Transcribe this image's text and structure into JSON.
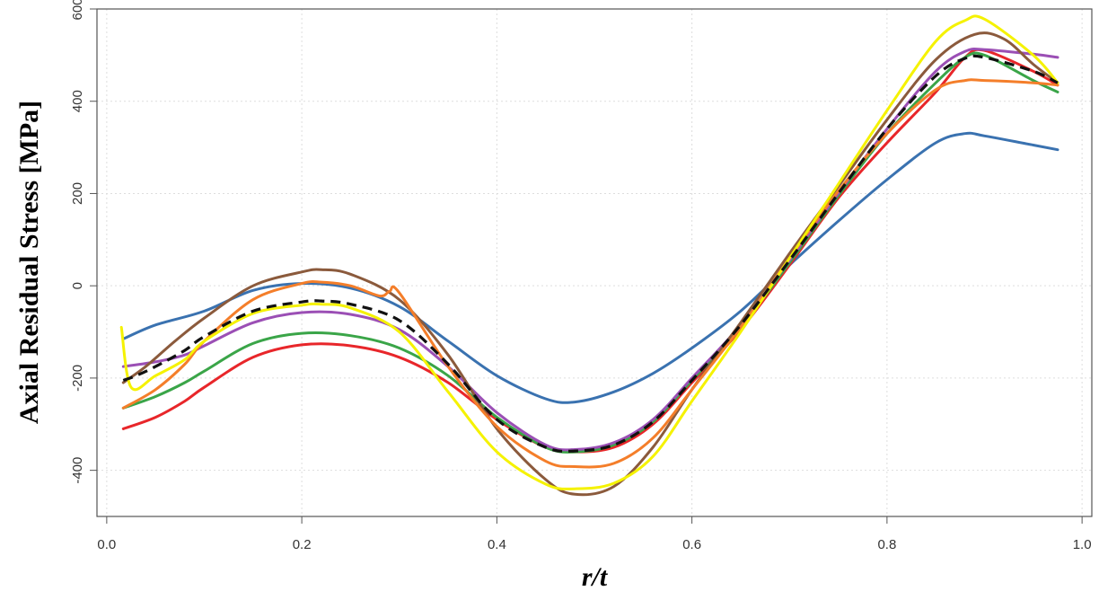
{
  "chart_data": {
    "type": "line",
    "title": "",
    "xlabel": "r/t",
    "ylabel": "Axial Residual Stress [MPa]",
    "xlim": [
      -0.01,
      1.01
    ],
    "ylim": [
      -500,
      600
    ],
    "xticks": [
      0.0,
      0.2,
      0.4,
      0.6,
      0.8,
      1.0
    ],
    "xtick_labels": [
      "0.0",
      "0.2",
      "0.4",
      "0.6",
      "0.8",
      "1.0"
    ],
    "yticks": [
      -400,
      -200,
      0,
      200,
      400,
      600
    ],
    "ytick_labels": [
      "-400",
      "-200",
      "0",
      "200",
      "400",
      "600"
    ],
    "grid": true,
    "legend": "none",
    "series": [
      {
        "color": "#3a72b0",
        "dash": false,
        "x": [
          0.017,
          0.05,
          0.1,
          0.15,
          0.2,
          0.25,
          0.3,
          0.35,
          0.4,
          0.45,
          0.48,
          0.52,
          0.56,
          0.6,
          0.65,
          0.7,
          0.75,
          0.8,
          0.85,
          0.88,
          0.9,
          0.95,
          0.975
        ],
        "y": [
          -115,
          -85,
          -55,
          -10,
          5,
          -5,
          -45,
          -120,
          -195,
          -245,
          -252,
          -230,
          -190,
          -135,
          -55,
          45,
          140,
          230,
          310,
          330,
          325,
          305,
          295
        ]
      },
      {
        "color": "#e8262a",
        "dash": false,
        "x": [
          0.017,
          0.05,
          0.08,
          0.1,
          0.15,
          0.2,
          0.25,
          0.3,
          0.35,
          0.4,
          0.45,
          0.48,
          0.52,
          0.56,
          0.6,
          0.65,
          0.7,
          0.75,
          0.8,
          0.85,
          0.88,
          0.9,
          0.95,
          0.975
        ],
        "y": [
          -310,
          -285,
          -250,
          -220,
          -155,
          -128,
          -130,
          -155,
          -210,
          -290,
          -350,
          -360,
          -350,
          -300,
          -210,
          -95,
          45,
          190,
          310,
          420,
          495,
          510,
          465,
          435
        ]
      },
      {
        "color": "#3aa548",
        "dash": false,
        "x": [
          0.017,
          0.05,
          0.08,
          0.1,
          0.15,
          0.2,
          0.25,
          0.3,
          0.35,
          0.4,
          0.45,
          0.48,
          0.52,
          0.56,
          0.6,
          0.65,
          0.7,
          0.75,
          0.8,
          0.85,
          0.88,
          0.9,
          0.95,
          0.975
        ],
        "y": [
          -265,
          -240,
          -210,
          -185,
          -125,
          -103,
          -108,
          -135,
          -195,
          -285,
          -350,
          -360,
          -345,
          -295,
          -205,
          -90,
          50,
          195,
          330,
          440,
          495,
          500,
          445,
          420
        ]
      },
      {
        "color": "#9b4fb5",
        "dash": false,
        "x": [
          0.017,
          0.05,
          0.08,
          0.1,
          0.15,
          0.2,
          0.25,
          0.3,
          0.35,
          0.4,
          0.45,
          0.48,
          0.52,
          0.56,
          0.6,
          0.65,
          0.7,
          0.75,
          0.8,
          0.85,
          0.88,
          0.9,
          0.95,
          0.975
        ],
        "y": [
          -175,
          -165,
          -150,
          -130,
          -80,
          -58,
          -62,
          -95,
          -175,
          -275,
          -345,
          -355,
          -340,
          -290,
          -200,
          -85,
          55,
          200,
          340,
          465,
          508,
          512,
          502,
          495
        ]
      },
      {
        "color": "#8b5a3c",
        "dash": false,
        "x": [
          0.017,
          0.04,
          0.07,
          0.1,
          0.15,
          0.2,
          0.22,
          0.25,
          0.3,
          0.35,
          0.4,
          0.45,
          0.48,
          0.52,
          0.56,
          0.6,
          0.65,
          0.7,
          0.75,
          0.8,
          0.85,
          0.89,
          0.92,
          0.95,
          0.975
        ],
        "y": [
          -210,
          -175,
          -120,
          -70,
          0,
          30,
          35,
          25,
          -30,
          -150,
          -310,
          -420,
          -452,
          -435,
          -350,
          -225,
          -80,
          70,
          215,
          360,
          490,
          545,
          535,
          480,
          440
        ]
      },
      {
        "color": "#f47e2a",
        "dash": false,
        "x": [
          0.017,
          0.05,
          0.08,
          0.1,
          0.15,
          0.2,
          0.22,
          0.25,
          0.28,
          0.29,
          0.3,
          0.35,
          0.4,
          0.45,
          0.48,
          0.52,
          0.56,
          0.6,
          0.65,
          0.7,
          0.75,
          0.8,
          0.85,
          0.88,
          0.9,
          0.95,
          0.975
        ],
        "y": [
          -265,
          -225,
          -170,
          -120,
          -30,
          5,
          8,
          0,
          -22,
          -12,
          -15,
          -175,
          -305,
          -380,
          -392,
          -385,
          -330,
          -225,
          -90,
          60,
          205,
          330,
          425,
          445,
          445,
          440,
          435
        ]
      },
      {
        "color": "#f5f200",
        "dash": false,
        "x": [
          0.015,
          0.025,
          0.05,
          0.08,
          0.1,
          0.15,
          0.2,
          0.22,
          0.25,
          0.3,
          0.35,
          0.4,
          0.45,
          0.48,
          0.52,
          0.56,
          0.6,
          0.65,
          0.7,
          0.75,
          0.8,
          0.85,
          0.88,
          0.9,
          0.95,
          0.975
        ],
        "y": [
          -90,
          -220,
          -195,
          -160,
          -120,
          -60,
          -42,
          -40,
          -48,
          -100,
          -230,
          -360,
          -430,
          -440,
          -428,
          -370,
          -250,
          -100,
          60,
          220,
          380,
          530,
          575,
          578,
          500,
          440
        ]
      },
      {
        "color": "#111111",
        "dash": true,
        "x": [
          0.017,
          0.03,
          0.05,
          0.08,
          0.1,
          0.15,
          0.2,
          0.22,
          0.25,
          0.3,
          0.35,
          0.4,
          0.45,
          0.48,
          0.52,
          0.56,
          0.6,
          0.65,
          0.7,
          0.75,
          0.8,
          0.85,
          0.88,
          0.9,
          0.95,
          0.975
        ],
        "y": [
          -205,
          -195,
          -175,
          -140,
          -110,
          -55,
          -35,
          -33,
          -40,
          -75,
          -170,
          -290,
          -350,
          -358,
          -345,
          -295,
          -205,
          -85,
          55,
          200,
          340,
          455,
          493,
          495,
          465,
          440
        ]
      }
    ]
  }
}
